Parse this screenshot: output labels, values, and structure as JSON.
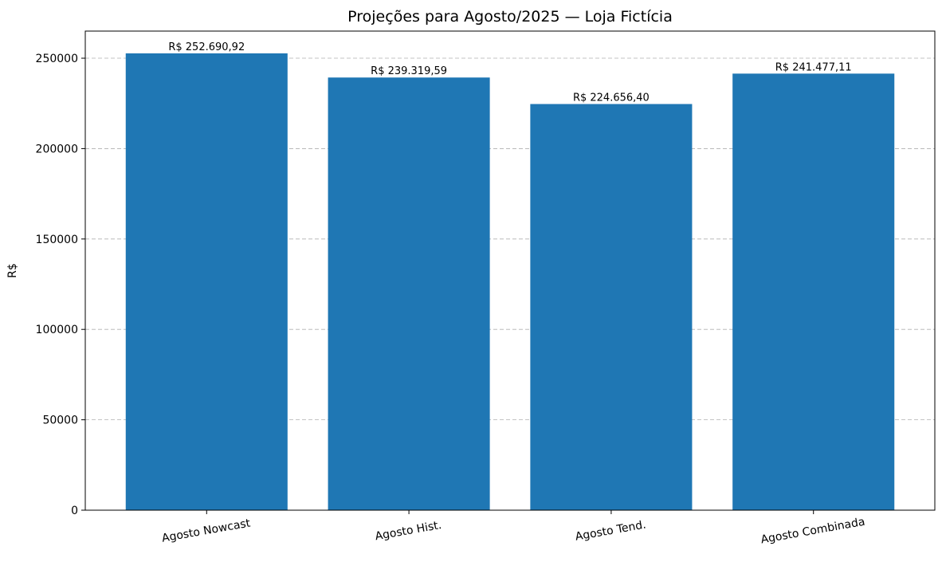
{
  "chart_data": {
    "type": "bar",
    "title": "Projeções para Agosto/2025 — Loja Fictícia",
    "xlabel": "",
    "ylabel": "R$",
    "categories": [
      "Agosto Nowcast",
      "Agosto Hist.",
      "Agosto Tend.",
      "Agosto Combinada"
    ],
    "values": [
      252690.92,
      239319.59,
      224656.4,
      241477.11
    ],
    "value_labels": [
      "R$ 252.690,92",
      "R$ 239.319,59",
      "R$ 224.656,40",
      "R$ 241.477,11"
    ],
    "ylim": [
      0,
      265000
    ],
    "yticks": [
      0,
      50000,
      100000,
      150000,
      200000,
      250000
    ],
    "ytick_labels": [
      "0",
      "50000",
      "100000",
      "150000",
      "200000",
      "250000"
    ],
    "grid": "y dashed",
    "bar_color": "#1f77b4",
    "grid_color": "#b0b0b0"
  }
}
